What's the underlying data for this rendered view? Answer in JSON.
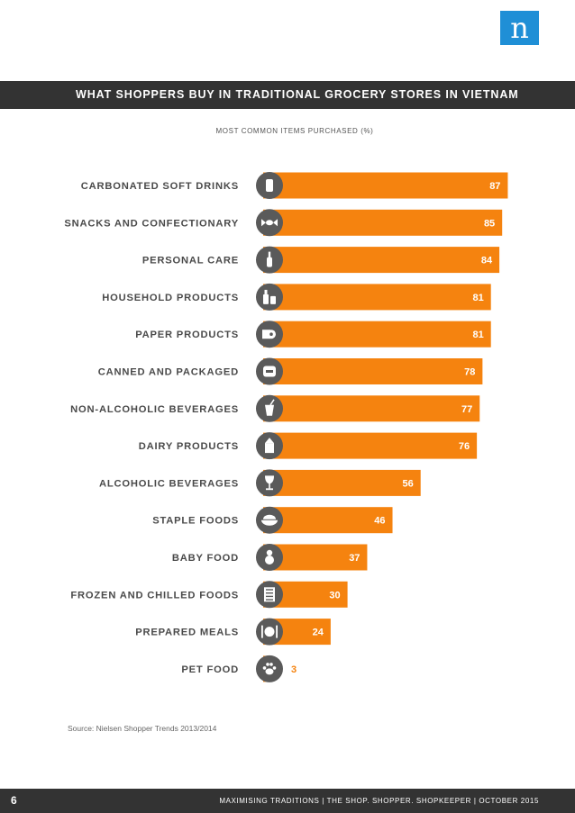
{
  "logo": "n",
  "header": {
    "title": "WHAT SHOPPERS BUY IN TRADITIONAL GROCERY STORES IN VIETNAM"
  },
  "chart_data": {
    "type": "bar",
    "orientation": "horizontal",
    "title": "MOST COMMON ITEMS PURCHASED (%)",
    "categories": [
      "CARBONATED SOFT DRINKS",
      "SNACKS AND CONFECTIONARY",
      "PERSONAL CARE",
      "HOUSEHOLD PRODUCTS",
      "PAPER PRODUCTS",
      "CANNED AND PACKAGED",
      "NON-ALCOHOLIC BEVERAGES",
      "DAIRY PRODUCTS",
      "ALCOHOLIC BEVERAGES",
      "STAPLE FOODS",
      "BABY FOOD",
      "FROZEN AND CHILLED FOODS",
      "PREPARED MEALS",
      "PET FOOD"
    ],
    "values": [
      87,
      85,
      84,
      81,
      81,
      78,
      77,
      76,
      56,
      46,
      37,
      30,
      24,
      3
    ],
    "icons": [
      "soda-can-icon",
      "candy-icon",
      "bottle-icon",
      "cleaning-bottles-icon",
      "toilet-paper-icon",
      "canned-food-icon",
      "drink-cup-icon",
      "milk-carton-icon",
      "wine-glass-icon",
      "rice-bowl-icon",
      "baby-icon",
      "freezer-icon",
      "cutlery-icon",
      "paw-icon"
    ],
    "xlim": [
      0,
      100
    ],
    "grid": false,
    "legend": "none",
    "colors": {
      "bar": "#f5830f",
      "icon_circle": "#5a5a5a"
    }
  },
  "source": "Source: Nielsen Shopper Trends 2013/2014",
  "footer": {
    "page_number": "6",
    "text": "MAXIMISING TRADITIONS | THE SHOP. SHOPPER. SHOPKEEPER | OCTOBER 2015"
  }
}
